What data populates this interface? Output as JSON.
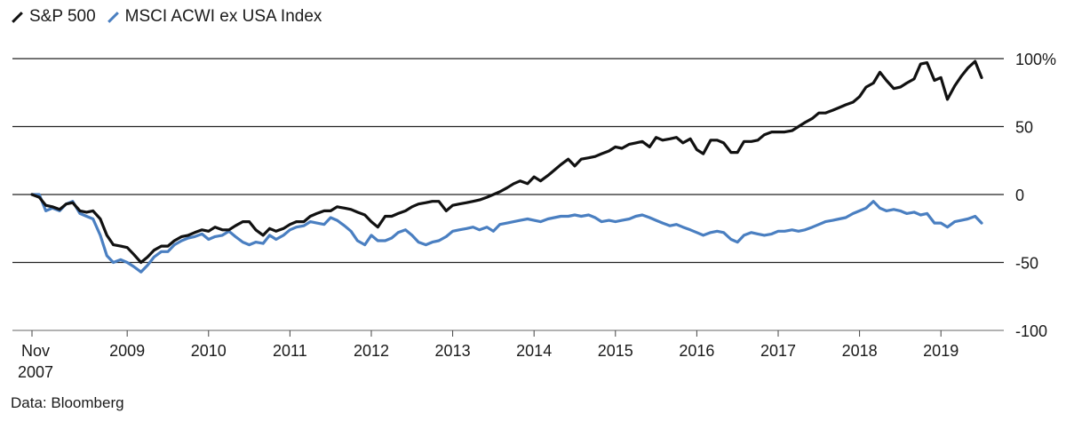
{
  "legend": [
    {
      "label": "S&P 500",
      "color": "#111111"
    },
    {
      "label": "MSCI ACWI ex USA Index",
      "color": "#4a7fc1"
    }
  ],
  "source": "Data: Bloomberg",
  "chart_data": {
    "type": "line",
    "title": "",
    "xlabel": "",
    "ylabel": "",
    "ylim": [
      -100,
      100
    ],
    "y_ticks": [
      100,
      50,
      0,
      -50,
      -100
    ],
    "y_tick_labels": [
      "100%",
      "50",
      "0",
      "-50",
      "-100"
    ],
    "grid": "horizontal",
    "legend_position": "top-left",
    "x_range": [
      2007.83,
      2019.75
    ],
    "x_ticks": [
      {
        "x": 2007.83,
        "label": "Nov",
        "sublabel": "2007"
      },
      {
        "x": 2009.0,
        "label": "2009"
      },
      {
        "x": 2010.0,
        "label": "2010"
      },
      {
        "x": 2011.0,
        "label": "2011"
      },
      {
        "x": 2012.0,
        "label": "2012"
      },
      {
        "x": 2013.0,
        "label": "2013"
      },
      {
        "x": 2014.0,
        "label": "2014"
      },
      {
        "x": 2015.0,
        "label": "2015"
      },
      {
        "x": 2016.0,
        "label": "2016"
      },
      {
        "x": 2017.0,
        "label": "2017"
      },
      {
        "x": 2018.0,
        "label": "2018"
      },
      {
        "x": 2019.0,
        "label": "2019"
      }
    ],
    "series": [
      {
        "name": "S&P 500",
        "color": "#111111",
        "points": [
          [
            2007.83,
            0
          ],
          [
            2007.92,
            -2
          ],
          [
            2008.0,
            -8
          ],
          [
            2008.08,
            -9
          ],
          [
            2008.17,
            -11
          ],
          [
            2008.25,
            -7
          ],
          [
            2008.33,
            -6
          ],
          [
            2008.42,
            -12
          ],
          [
            2008.5,
            -13
          ],
          [
            2008.58,
            -12
          ],
          [
            2008.67,
            -18
          ],
          [
            2008.75,
            -30
          ],
          [
            2008.83,
            -37
          ],
          [
            2008.92,
            -38
          ],
          [
            2009.0,
            -39
          ],
          [
            2009.08,
            -44
          ],
          [
            2009.17,
            -50
          ],
          [
            2009.25,
            -46
          ],
          [
            2009.33,
            -41
          ],
          [
            2009.42,
            -38
          ],
          [
            2009.5,
            -38
          ],
          [
            2009.58,
            -34
          ],
          [
            2009.67,
            -31
          ],
          [
            2009.75,
            -30
          ],
          [
            2009.83,
            -28
          ],
          [
            2009.92,
            -26
          ],
          [
            2010.0,
            -27
          ],
          [
            2010.08,
            -24
          ],
          [
            2010.17,
            -26
          ],
          [
            2010.25,
            -26
          ],
          [
            2010.33,
            -23
          ],
          [
            2010.42,
            -20
          ],
          [
            2010.5,
            -20
          ],
          [
            2010.58,
            -26
          ],
          [
            2010.67,
            -30
          ],
          [
            2010.75,
            -25
          ],
          [
            2010.83,
            -27
          ],
          [
            2010.92,
            -25
          ],
          [
            2011.0,
            -22
          ],
          [
            2011.08,
            -20
          ],
          [
            2011.17,
            -20
          ],
          [
            2011.25,
            -16
          ],
          [
            2011.33,
            -14
          ],
          [
            2011.42,
            -12
          ],
          [
            2011.5,
            -12
          ],
          [
            2011.58,
            -9
          ],
          [
            2011.67,
            -10
          ],
          [
            2011.75,
            -11
          ],
          [
            2011.83,
            -13
          ],
          [
            2011.92,
            -15
          ],
          [
            2012.0,
            -20
          ],
          [
            2012.08,
            -24
          ],
          [
            2012.17,
            -16
          ],
          [
            2012.25,
            -16
          ],
          [
            2012.33,
            -14
          ],
          [
            2012.42,
            -12
          ],
          [
            2012.5,
            -9
          ],
          [
            2012.58,
            -7
          ],
          [
            2012.67,
            -6
          ],
          [
            2012.75,
            -5
          ],
          [
            2012.83,
            -5
          ],
          [
            2012.92,
            -12
          ],
          [
            2013.0,
            -8
          ],
          [
            2013.08,
            -7
          ],
          [
            2013.17,
            -6
          ],
          [
            2013.25,
            -5
          ],
          [
            2013.33,
            -4
          ],
          [
            2013.42,
            -2
          ],
          [
            2013.5,
            0
          ],
          [
            2013.58,
            2
          ],
          [
            2013.67,
            5
          ],
          [
            2013.75,
            8
          ],
          [
            2013.83,
            10
          ],
          [
            2013.92,
            8
          ],
          [
            2014.0,
            13
          ],
          [
            2014.08,
            10
          ],
          [
            2014.17,
            14
          ],
          [
            2014.25,
            18
          ],
          [
            2014.33,
            22
          ],
          [
            2014.42,
            26
          ],
          [
            2014.5,
            21
          ],
          [
            2014.58,
            26
          ],
          [
            2014.67,
            27
          ],
          [
            2014.75,
            28
          ],
          [
            2014.83,
            30
          ],
          [
            2014.92,
            32
          ],
          [
            2015.0,
            35
          ],
          [
            2015.08,
            34
          ],
          [
            2015.17,
            37
          ],
          [
            2015.25,
            38
          ],
          [
            2015.33,
            39
          ],
          [
            2015.42,
            35
          ],
          [
            2015.5,
            42
          ],
          [
            2015.58,
            40
          ],
          [
            2015.67,
            41
          ],
          [
            2015.75,
            42
          ],
          [
            2015.83,
            38
          ],
          [
            2015.92,
            41
          ],
          [
            2016.0,
            33
          ],
          [
            2016.08,
            30
          ],
          [
            2016.17,
            40
          ],
          [
            2016.25,
            40
          ],
          [
            2016.33,
            38
          ],
          [
            2016.42,
            31
          ],
          [
            2016.5,
            31
          ],
          [
            2016.58,
            39
          ],
          [
            2016.67,
            39
          ],
          [
            2016.75,
            40
          ],
          [
            2016.83,
            44
          ],
          [
            2016.92,
            46
          ],
          [
            2017.0,
            46
          ],
          [
            2017.08,
            46
          ],
          [
            2017.17,
            47
          ],
          [
            2017.25,
            50
          ],
          [
            2017.33,
            53
          ],
          [
            2017.42,
            56
          ],
          [
            2017.5,
            60
          ],
          [
            2017.58,
            60
          ],
          [
            2017.67,
            62
          ],
          [
            2017.75,
            64
          ],
          [
            2017.83,
            66
          ],
          [
            2017.92,
            68
          ],
          [
            2018.0,
            72
          ],
          [
            2018.08,
            79
          ],
          [
            2018.17,
            82
          ],
          [
            2018.25,
            90
          ],
          [
            2018.33,
            84
          ],
          [
            2018.42,
            78
          ],
          [
            2018.5,
            79
          ],
          [
            2018.58,
            82
          ],
          [
            2018.67,
            85
          ],
          [
            2018.75,
            96
          ],
          [
            2018.83,
            97
          ],
          [
            2018.92,
            84
          ],
          [
            2019.0,
            86
          ],
          [
            2019.08,
            70
          ],
          [
            2019.17,
            80
          ],
          [
            2019.25,
            87
          ],
          [
            2019.33,
            93
          ],
          [
            2019.42,
            98
          ],
          [
            2019.5,
            86
          ]
        ]
      },
      {
        "name": "MSCI ACWI ex USA Index",
        "color": "#4a7fc1",
        "points": [
          [
            2007.83,
            0
          ],
          [
            2007.92,
            0
          ],
          [
            2008.0,
            -12
          ],
          [
            2008.08,
            -10
          ],
          [
            2008.17,
            -12
          ],
          [
            2008.25,
            -7
          ],
          [
            2008.33,
            -5
          ],
          [
            2008.42,
            -14
          ],
          [
            2008.5,
            -16
          ],
          [
            2008.58,
            -18
          ],
          [
            2008.67,
            -30
          ],
          [
            2008.75,
            -45
          ],
          [
            2008.83,
            -50
          ],
          [
            2008.92,
            -48
          ],
          [
            2009.0,
            -50
          ],
          [
            2009.08,
            -53
          ],
          [
            2009.17,
            -57
          ],
          [
            2009.25,
            -52
          ],
          [
            2009.33,
            -46
          ],
          [
            2009.42,
            -42
          ],
          [
            2009.5,
            -42
          ],
          [
            2009.58,
            -37
          ],
          [
            2009.67,
            -34
          ],
          [
            2009.75,
            -32
          ],
          [
            2009.83,
            -31
          ],
          [
            2009.92,
            -29
          ],
          [
            2010.0,
            -33
          ],
          [
            2010.08,
            -31
          ],
          [
            2010.17,
            -30
          ],
          [
            2010.25,
            -27
          ],
          [
            2010.33,
            -31
          ],
          [
            2010.42,
            -35
          ],
          [
            2010.5,
            -37
          ],
          [
            2010.58,
            -35
          ],
          [
            2010.67,
            -36
          ],
          [
            2010.75,
            -30
          ],
          [
            2010.83,
            -33
          ],
          [
            2010.92,
            -30
          ],
          [
            2011.0,
            -26
          ],
          [
            2011.08,
            -24
          ],
          [
            2011.17,
            -23
          ],
          [
            2011.25,
            -20
          ],
          [
            2011.33,
            -21
          ],
          [
            2011.42,
            -22
          ],
          [
            2011.5,
            -17
          ],
          [
            2011.58,
            -19
          ],
          [
            2011.67,
            -23
          ],
          [
            2011.75,
            -27
          ],
          [
            2011.83,
            -34
          ],
          [
            2011.92,
            -37
          ],
          [
            2012.0,
            -30
          ],
          [
            2012.08,
            -34
          ],
          [
            2012.17,
            -34
          ],
          [
            2012.25,
            -32
          ],
          [
            2012.33,
            -28
          ],
          [
            2012.42,
            -26
          ],
          [
            2012.5,
            -30
          ],
          [
            2012.58,
            -35
          ],
          [
            2012.67,
            -37
          ],
          [
            2012.75,
            -35
          ],
          [
            2012.83,
            -34
          ],
          [
            2012.92,
            -31
          ],
          [
            2013.0,
            -27
          ],
          [
            2013.08,
            -26
          ],
          [
            2013.17,
            -25
          ],
          [
            2013.25,
            -24
          ],
          [
            2013.33,
            -26
          ],
          [
            2013.42,
            -24
          ],
          [
            2013.5,
            -27
          ],
          [
            2013.58,
            -22
          ],
          [
            2013.67,
            -21
          ],
          [
            2013.75,
            -20
          ],
          [
            2013.83,
            -19
          ],
          [
            2013.92,
            -18
          ],
          [
            2014.0,
            -19
          ],
          [
            2014.08,
            -20
          ],
          [
            2014.17,
            -18
          ],
          [
            2014.25,
            -17
          ],
          [
            2014.33,
            -16
          ],
          [
            2014.42,
            -16
          ],
          [
            2014.5,
            -15
          ],
          [
            2014.58,
            -16
          ],
          [
            2014.67,
            -15
          ],
          [
            2014.75,
            -17
          ],
          [
            2014.83,
            -20
          ],
          [
            2014.92,
            -19
          ],
          [
            2015.0,
            -20
          ],
          [
            2015.08,
            -19
          ],
          [
            2015.17,
            -18
          ],
          [
            2015.25,
            -16
          ],
          [
            2015.33,
            -15
          ],
          [
            2015.42,
            -17
          ],
          [
            2015.5,
            -19
          ],
          [
            2015.58,
            -21
          ],
          [
            2015.67,
            -23
          ],
          [
            2015.75,
            -22
          ],
          [
            2015.83,
            -24
          ],
          [
            2015.92,
            -26
          ],
          [
            2016.0,
            -28
          ],
          [
            2016.08,
            -30
          ],
          [
            2016.17,
            -28
          ],
          [
            2016.25,
            -27
          ],
          [
            2016.33,
            -28
          ],
          [
            2016.42,
            -33
          ],
          [
            2016.5,
            -35
          ],
          [
            2016.58,
            -30
          ],
          [
            2016.67,
            -28
          ],
          [
            2016.75,
            -29
          ],
          [
            2016.83,
            -30
          ],
          [
            2016.92,
            -29
          ],
          [
            2017.0,
            -27
          ],
          [
            2017.08,
            -27
          ],
          [
            2017.17,
            -26
          ],
          [
            2017.25,
            -27
          ],
          [
            2017.33,
            -26
          ],
          [
            2017.42,
            -24
          ],
          [
            2017.5,
            -22
          ],
          [
            2017.58,
            -20
          ],
          [
            2017.67,
            -19
          ],
          [
            2017.75,
            -18
          ],
          [
            2017.83,
            -17
          ],
          [
            2017.92,
            -14
          ],
          [
            2018.0,
            -12
          ],
          [
            2018.08,
            -10
          ],
          [
            2018.17,
            -5
          ],
          [
            2018.25,
            -10
          ],
          [
            2018.33,
            -12
          ],
          [
            2018.42,
            -11
          ],
          [
            2018.5,
            -12
          ],
          [
            2018.58,
            -14
          ],
          [
            2018.67,
            -13
          ],
          [
            2018.75,
            -15
          ],
          [
            2018.83,
            -14
          ],
          [
            2018.92,
            -21
          ],
          [
            2019.0,
            -21
          ],
          [
            2019.08,
            -24
          ],
          [
            2019.17,
            -20
          ],
          [
            2019.25,
            -19
          ],
          [
            2019.33,
            -18
          ],
          [
            2019.42,
            -16
          ],
          [
            2019.5,
            -21
          ]
        ]
      }
    ]
  }
}
